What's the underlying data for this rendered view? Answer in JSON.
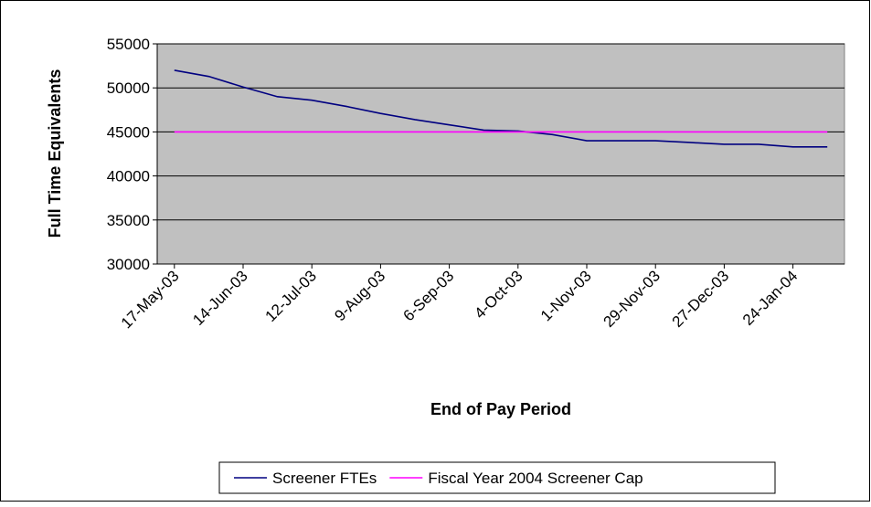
{
  "chart_data": {
    "type": "line",
    "xlabel": "End of Pay Period",
    "ylabel": "Full Time Equivalents",
    "categories": [
      "17-May-03",
      null,
      "14-Jun-03",
      null,
      "12-Jul-03",
      null,
      "9-Aug-03",
      null,
      "6-Sep-03",
      null,
      "4-Oct-03",
      null,
      "1-Nov-03",
      null,
      "29-Nov-03",
      null,
      "27-Dec-03",
      null,
      "24-Jan-04",
      null
    ],
    "series": [
      {
        "name": "Screener FTEs",
        "color": "#000080",
        "values": [
          52000,
          51300,
          50100,
          49000,
          48600,
          47900,
          47100,
          46400,
          45800,
          45200,
          45100,
          44700,
          44000,
          44000,
          44000,
          43800,
          43600,
          43600,
          43300,
          43300
        ]
      },
      {
        "name": "Fiscal Year 2004 Screener Cap",
        "color": "#ff00ff",
        "values": [
          45000,
          45000,
          45000,
          45000,
          45000,
          45000,
          45000,
          45000,
          45000,
          45000,
          45000,
          45000,
          45000,
          45000,
          45000,
          45000,
          45000,
          45000,
          45000,
          45000
        ]
      }
    ],
    "ylim": [
      30000,
      55000
    ],
    "yticks": [
      30000,
      35000,
      40000,
      45000,
      50000,
      55000
    ],
    "grid": true,
    "legend": "bottom"
  }
}
